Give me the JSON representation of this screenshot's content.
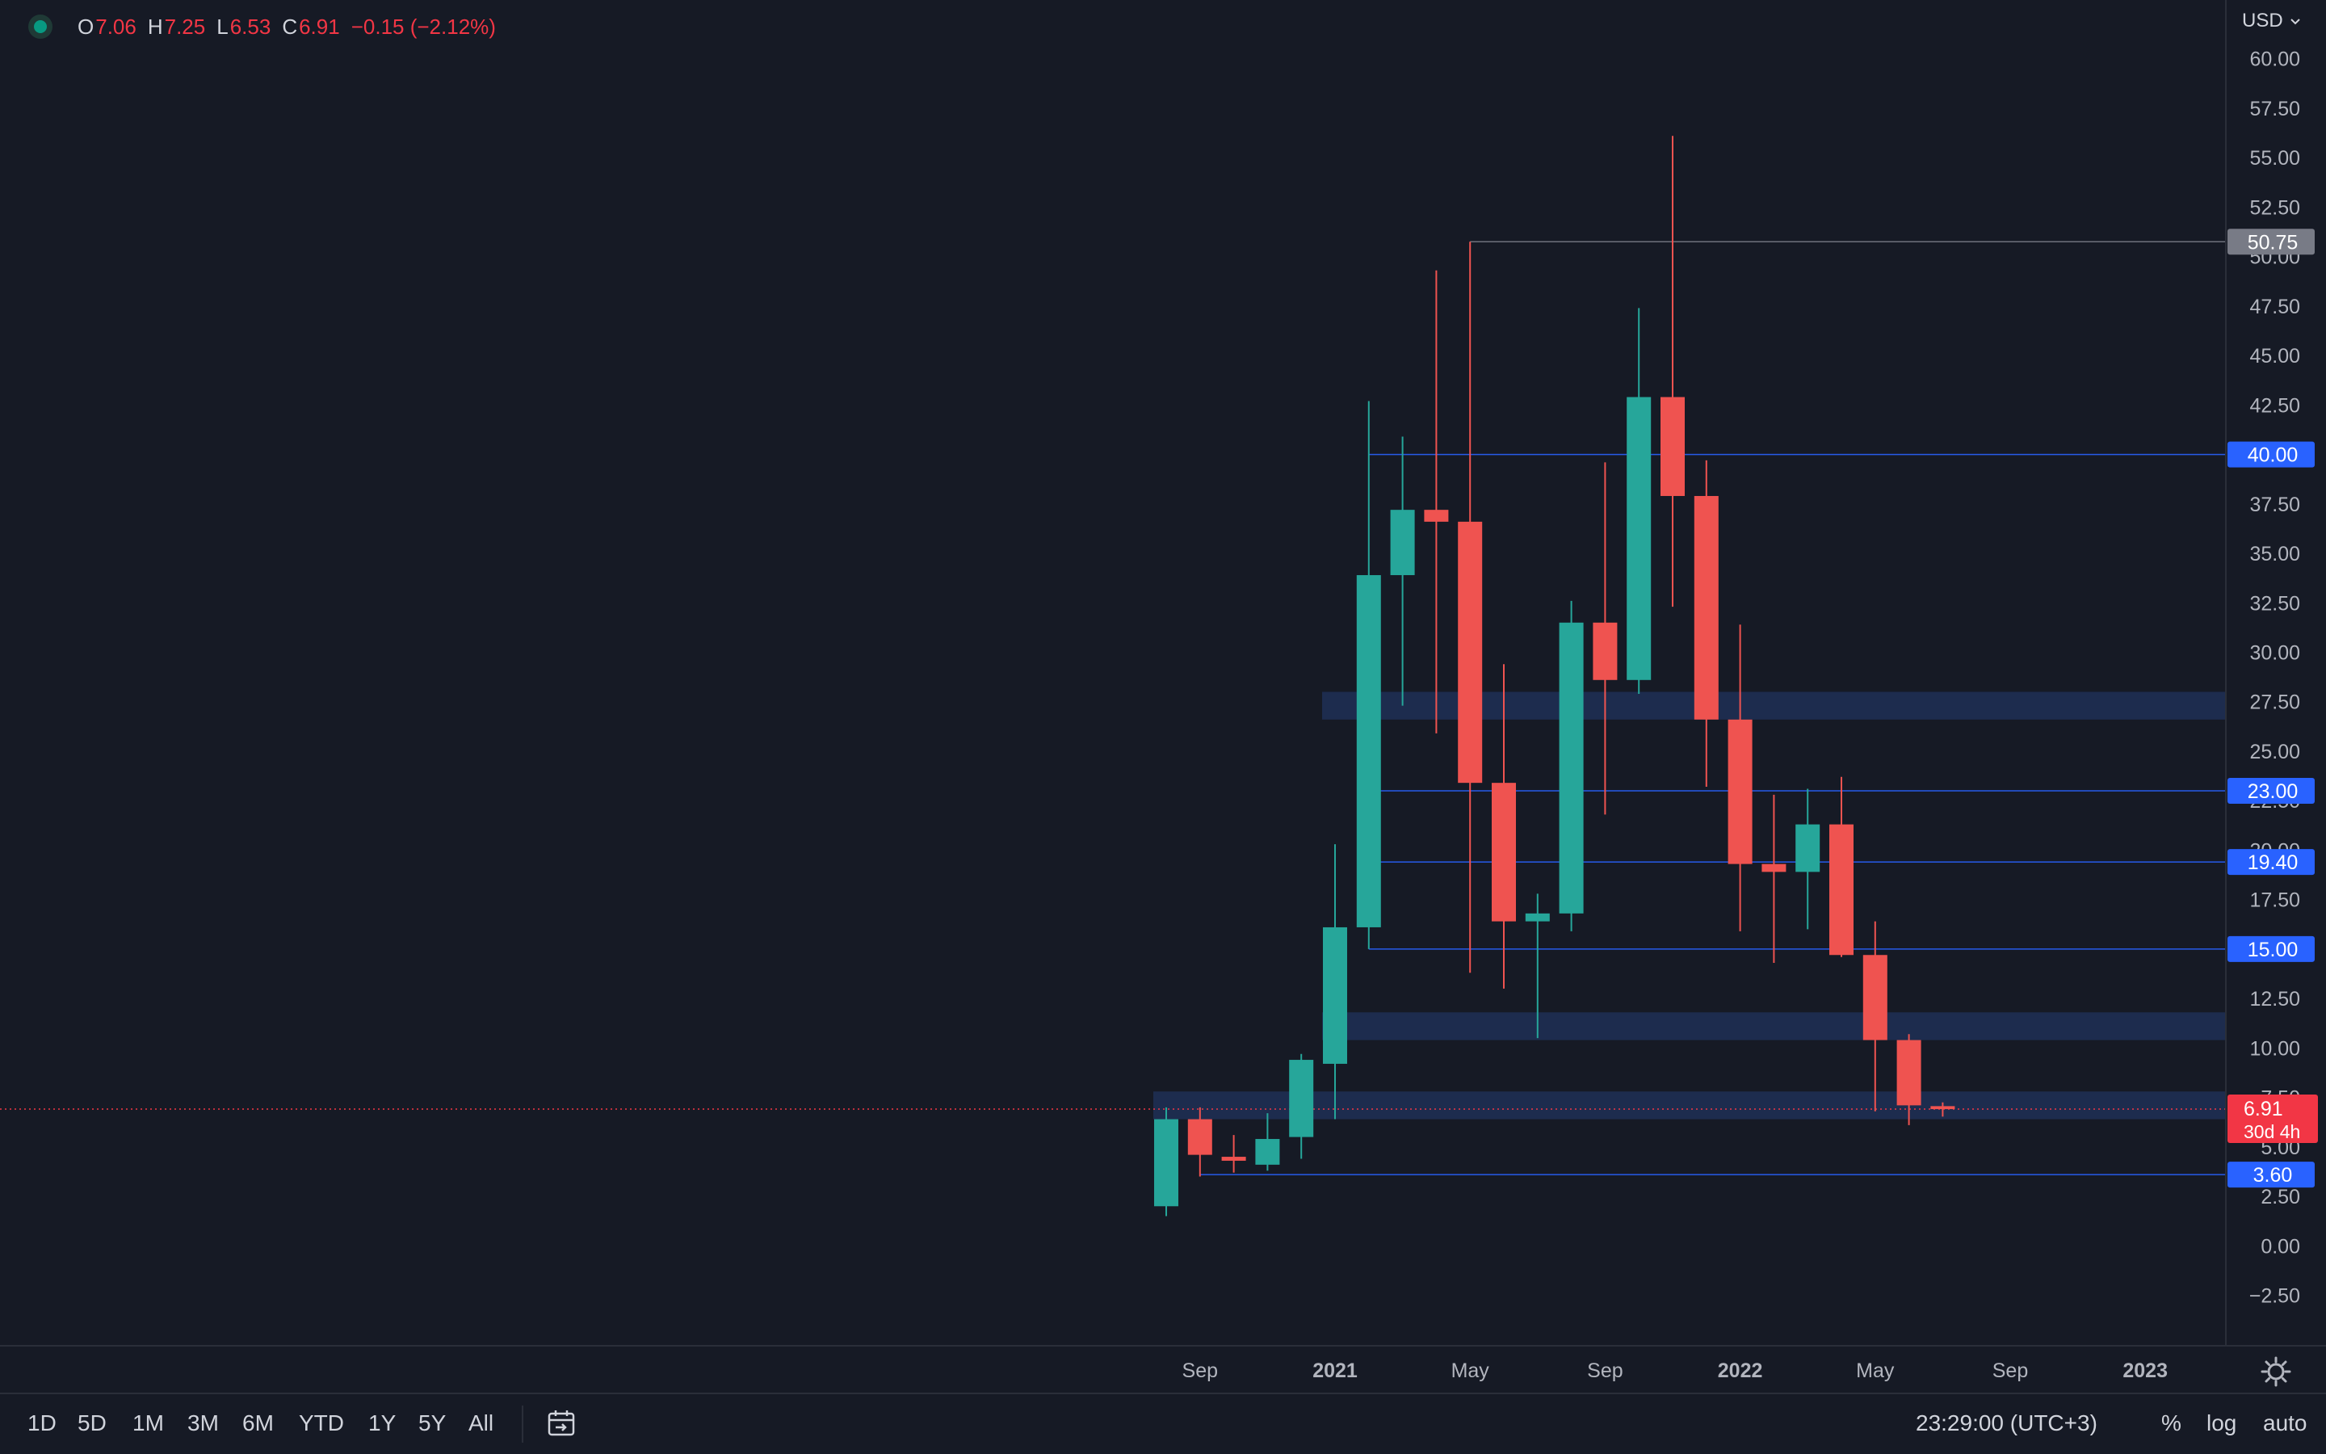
{
  "header": {
    "open_label": "O",
    "open": "7.06",
    "high_label": "H",
    "high": "7.25",
    "low_label": "L",
    "low": "6.53",
    "close_label": "C",
    "close": "6.91",
    "change": "−0.15 (−2.12%)",
    "currency": "USD"
  },
  "chart_data": {
    "type": "candlestick",
    "interval": "monthly",
    "y_ticks": [
      "60.00",
      "57.50",
      "55.00",
      "52.50",
      "50.00",
      "47.50",
      "45.00",
      "42.50",
      "40.00",
      "37.50",
      "35.00",
      "32.50",
      "30.00",
      "27.50",
      "25.00",
      "22.50",
      "20.00",
      "17.50",
      "15.00",
      "12.50",
      "10.00",
      "7.50",
      "5.00",
      "2.50",
      "0.00",
      "−2.50"
    ],
    "y_tick_values": [
      60,
      57.5,
      55,
      52.5,
      50,
      47.5,
      45,
      42.5,
      40,
      37.5,
      35,
      32.5,
      30,
      27.5,
      25,
      22.5,
      20,
      17.5,
      15,
      12.5,
      10,
      7.5,
      5,
      2.5,
      0,
      -2.5
    ],
    "ylim": [
      -3.5,
      61.5
    ],
    "x_ticks": [
      {
        "label": "Sep",
        "month": "2020-09",
        "bold": false
      },
      {
        "label": "2021",
        "month": "2021-01",
        "bold": true
      },
      {
        "label": "May",
        "month": "2021-05",
        "bold": false
      },
      {
        "label": "Sep",
        "month": "2021-09",
        "bold": false
      },
      {
        "label": "2022",
        "month": "2022-01",
        "bold": true
      },
      {
        "label": "May",
        "month": "2022-05",
        "bold": false
      },
      {
        "label": "Sep",
        "month": "2022-09",
        "bold": false
      },
      {
        "label": "2023",
        "month": "2023-01",
        "bold": true
      }
    ],
    "candles": [
      {
        "month": "2020-08",
        "o": 2.0,
        "h": 7.0,
        "l": 1.5,
        "c": 6.4
      },
      {
        "month": "2020-09",
        "o": 6.4,
        "h": 7.0,
        "l": 3.5,
        "c": 4.6
      },
      {
        "month": "2020-10",
        "o": 4.5,
        "h": 5.6,
        "l": 3.7,
        "c": 4.3
      },
      {
        "month": "2020-11",
        "o": 4.1,
        "h": 6.7,
        "l": 3.8,
        "c": 5.4
      },
      {
        "month": "2020-12",
        "o": 5.5,
        "h": 9.7,
        "l": 4.4,
        "c": 9.4
      },
      {
        "month": "2021-01",
        "o": 9.2,
        "h": 20.3,
        "l": 6.4,
        "c": 16.1
      },
      {
        "month": "2021-02",
        "o": 16.1,
        "h": 42.7,
        "l": 15.0,
        "c": 33.9
      },
      {
        "month": "2021-03",
        "o": 33.9,
        "h": 40.9,
        "l": 27.3,
        "c": 37.2
      },
      {
        "month": "2021-04",
        "o": 37.2,
        "h": 49.3,
        "l": 25.9,
        "c": 36.6
      },
      {
        "month": "2021-05",
        "o": 36.6,
        "h": 50.75,
        "l": 13.8,
        "c": 23.4
      },
      {
        "month": "2021-06",
        "o": 23.4,
        "h": 29.4,
        "l": 13.0,
        "c": 16.4
      },
      {
        "month": "2021-07",
        "o": 16.4,
        "h": 17.8,
        "l": 10.5,
        "c": 16.8
      },
      {
        "month": "2021-08",
        "o": 16.8,
        "h": 32.6,
        "l": 15.9,
        "c": 31.5
      },
      {
        "month": "2021-09",
        "o": 31.5,
        "h": 39.6,
        "l": 21.8,
        "c": 28.6
      },
      {
        "month": "2021-10",
        "o": 28.6,
        "h": 47.4,
        "l": 27.9,
        "c": 42.9
      },
      {
        "month": "2021-11",
        "o": 42.9,
        "h": 56.1,
        "l": 32.3,
        "c": 37.9
      },
      {
        "month": "2021-12",
        "o": 37.9,
        "h": 39.7,
        "l": 23.2,
        "c": 26.6
      },
      {
        "month": "2022-01",
        "o": 26.6,
        "h": 31.4,
        "l": 15.9,
        "c": 19.3
      },
      {
        "month": "2022-02",
        "o": 19.3,
        "h": 22.8,
        "l": 14.3,
        "c": 18.9
      },
      {
        "month": "2022-03",
        "o": 18.9,
        "h": 23.1,
        "l": 16.0,
        "c": 21.3
      },
      {
        "month": "2022-04",
        "o": 21.3,
        "h": 23.7,
        "l": 14.6,
        "c": 14.7
      },
      {
        "month": "2022-05",
        "o": 14.7,
        "h": 16.4,
        "l": 6.8,
        "c": 10.4
      },
      {
        "month": "2022-06",
        "o": 10.4,
        "h": 10.7,
        "l": 6.1,
        "c": 7.1
      },
      {
        "month": "2022-07",
        "o": 7.06,
        "h": 7.25,
        "l": 6.53,
        "c": 6.91
      }
    ],
    "horizontal_lines": [
      {
        "from": "2021-05",
        "price": 50.75,
        "label": "50.75",
        "color": "#787b86"
      },
      {
        "from": "2021-02",
        "price": 40.0,
        "label": "40.00",
        "color": "#2962ff"
      },
      {
        "from": "2021-02",
        "price": 23.0,
        "label": "23.00",
        "color": "#2962ff"
      },
      {
        "from": "2021-02",
        "price": 19.4,
        "label": "19.40",
        "color": "#2962ff"
      },
      {
        "from": "2021-02",
        "price": 15.0,
        "label": "15.00",
        "color": "#2962ff"
      },
      {
        "from": "2020-09",
        "price": 3.6,
        "label": "3.60",
        "color": "#2962ff"
      }
    ],
    "zones": [
      {
        "from": "2021-01",
        "low": 26.6,
        "high": 28.0
      },
      {
        "from": "2021-01",
        "low": 10.4,
        "high": 11.8
      },
      {
        "from": "2020-08",
        "low": 6.4,
        "high": 7.8
      }
    ],
    "last_price": {
      "value": 6.91,
      "label": "6.91",
      "countdown": "30d 4h",
      "color": "#f23645"
    }
  },
  "bottom_bar": {
    "ranges": [
      "1D",
      "5D",
      "1M",
      "3M",
      "6M",
      "YTD",
      "1Y",
      "5Y",
      "All"
    ],
    "time": "23:29:00 (UTC+3)",
    "percent": "%",
    "log": "log",
    "auto": "auto"
  },
  "colors": {
    "up": "#26a69a",
    "down": "#ef5350",
    "background": "#161a25",
    "line": "#2962ff",
    "zone": "#1e3056"
  }
}
